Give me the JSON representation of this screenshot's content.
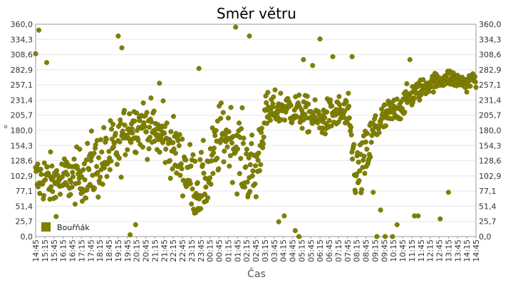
{
  "chart_data": {
    "type": "scatter",
    "title": "Směr větru",
    "xlabel": "Čas",
    "ylabel": "°",
    "ylim": [
      0,
      360
    ],
    "y_ticks": [
      "0,0",
      "25,7",
      "51,4",
      "77,1",
      "102,9",
      "128,6",
      "154,3",
      "180,0",
      "205,7",
      "231,4",
      "257,1",
      "282,9",
      "308,6",
      "334,3",
      "360,0"
    ],
    "x_ticks": [
      "14:45",
      "15:15",
      "15:45",
      "16:15",
      "16:45",
      "17:15",
      "17:45",
      "18:15",
      "18:45",
      "19:15",
      "19:45",
      "20:15",
      "20:45",
      "21:15",
      "21:45",
      "22:15",
      "22:45",
      "23:15",
      "23:45",
      "00:15",
      "00:45",
      "01:15",
      "01:45",
      "02:15",
      "02:45",
      "03:15",
      "03:45",
      "04:15",
      "04:45",
      "05:15",
      "05:45",
      "06:15",
      "06:45",
      "07:15",
      "07:45",
      "08:15",
      "08:45",
      "09:15",
      "09:45",
      "10:15",
      "10:45",
      "11:15",
      "11:45",
      "12:15",
      "12:45",
      "13:15",
      "13:45",
      "14:15",
      "14:45"
    ],
    "grid": true,
    "legend_position": "bottom-left",
    "series": [
      {
        "name": "Bouřňák",
        "color": "#808000",
        "anchors": [
          [
            0,
            95
          ],
          [
            1,
            100
          ],
          [
            2,
            90
          ],
          [
            3,
            95
          ],
          [
            4,
            100
          ],
          [
            5,
            105
          ],
          [
            6,
            115
          ],
          [
            7,
            125
          ],
          [
            8,
            135
          ],
          [
            9,
            150
          ],
          [
            10,
            185
          ],
          [
            11,
            190
          ],
          [
            12,
            190
          ],
          [
            13,
            175
          ],
          [
            14,
            165
          ],
          [
            15,
            150
          ],
          [
            16,
            125
          ],
          [
            17,
            95
          ],
          [
            18,
            85
          ],
          [
            19,
            110
          ],
          [
            20,
            165
          ],
          [
            21,
            175
          ],
          [
            22,
            150
          ],
          [
            23,
            120
          ],
          [
            24,
            110
          ],
          [
            25,
            205
          ],
          [
            26,
            215
          ],
          [
            27,
            220
          ],
          [
            28,
            215
          ],
          [
            29,
            210
          ],
          [
            30,
            205
          ],
          [
            31,
            195
          ],
          [
            32,
            205
          ],
          [
            33,
            210
          ],
          [
            34,
            205
          ],
          [
            35,
            100
          ],
          [
            36,
            130
          ],
          [
            37,
            185
          ],
          [
            38,
            200
          ],
          [
            39,
            210
          ],
          [
            40,
            225
          ],
          [
            41,
            240
          ],
          [
            42,
            250
          ],
          [
            43,
            260
          ],
          [
            44,
            265
          ],
          [
            45,
            270
          ],
          [
            46,
            265
          ],
          [
            47,
            260
          ],
          [
            48,
            270
          ]
        ],
        "spread": [
          30,
          30,
          30,
          30,
          30,
          30,
          40,
          40,
          40,
          35,
          30,
          30,
          30,
          30,
          30,
          35,
          35,
          40,
          40,
          40,
          40,
          35,
          45,
          45,
          45,
          25,
          20,
          20,
          20,
          20,
          20,
          20,
          20,
          20,
          25,
          40,
          35,
          25,
          20,
          18,
          15,
          15,
          12,
          10,
          10,
          10,
          10,
          10,
          10
        ],
        "outliers": [
          [
            0.0,
            310
          ],
          [
            0.35,
            350
          ],
          [
            1.2,
            295
          ],
          [
            9.0,
            340
          ],
          [
            9.4,
            320
          ],
          [
            10.3,
            3
          ],
          [
            10.9,
            20
          ],
          [
            13.5,
            260
          ],
          [
            13.9,
            230
          ],
          [
            17.8,
            285
          ],
          [
            21.8,
            355
          ],
          [
            23.3,
            340
          ],
          [
            26.5,
            25
          ],
          [
            27.1,
            35
          ],
          [
            28.3,
            10
          ],
          [
            28.7,
            0
          ],
          [
            29.2,
            300
          ],
          [
            30.2,
            290
          ],
          [
            31.0,
            335
          ],
          [
            32.4,
            305
          ],
          [
            34.5,
            305
          ],
          [
            37.2,
            0
          ],
          [
            37.6,
            45
          ],
          [
            38.1,
            0
          ],
          [
            38.9,
            0
          ],
          [
            39.4,
            20
          ],
          [
            40.8,
            300
          ],
          [
            41.3,
            35
          ],
          [
            41.7,
            35
          ],
          [
            36.8,
            75
          ],
          [
            44.1,
            30
          ],
          [
            45.0,
            75
          ]
        ]
      }
    ]
  }
}
